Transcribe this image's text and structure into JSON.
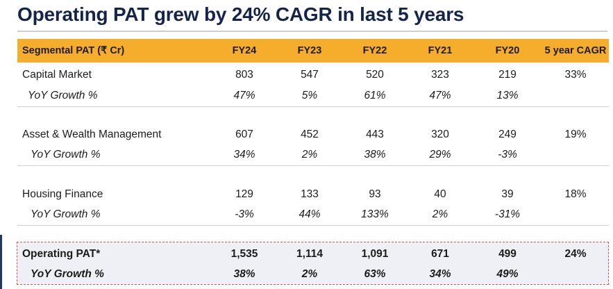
{
  "title": "Operating PAT grew by 24% CAGR in last 5 years",
  "table": {
    "headers": [
      "Segmental PAT (₹ Cr)",
      "FY24",
      "FY23",
      "FY22",
      "FY21",
      "FY20",
      "5 year CAGR"
    ],
    "rows": [
      {
        "label": "Capital Market",
        "values": [
          "803",
          "547",
          "520",
          "323",
          "219",
          "33%"
        ]
      },
      {
        "label": "YoY Growth %",
        "values": [
          "47%",
          "5%",
          "61%",
          "47%",
          "13%",
          ""
        ]
      },
      {
        "label": "Asset & Wealth Management",
        "values": [
          "607",
          "452",
          "443",
          "320",
          "249",
          "19%"
        ]
      },
      {
        "label": "YoY Growth %",
        "values": [
          "34%",
          "2%",
          "38%",
          "29%",
          "-3%",
          ""
        ]
      },
      {
        "label": "Housing Finance",
        "values": [
          "129",
          "133",
          "93",
          "40",
          "39",
          "18%"
        ]
      },
      {
        "label": "YoY Growth %",
        "values": [
          "-3%",
          "44%",
          "133%",
          "2%",
          "-31%",
          ""
        ]
      },
      {
        "label": "Operating PAT*",
        "values": [
          "1,535",
          "1,114",
          "1,091",
          "671",
          "499",
          "24%"
        ]
      },
      {
        "label": "YoY Growth %",
        "values": [
          "38%",
          "2%",
          "63%",
          "34%",
          "49%",
          ""
        ]
      }
    ]
  },
  "colors": {
    "header_bg": "#f7ad2c",
    "title": "#14254b",
    "total_border": "#e8484a"
  }
}
